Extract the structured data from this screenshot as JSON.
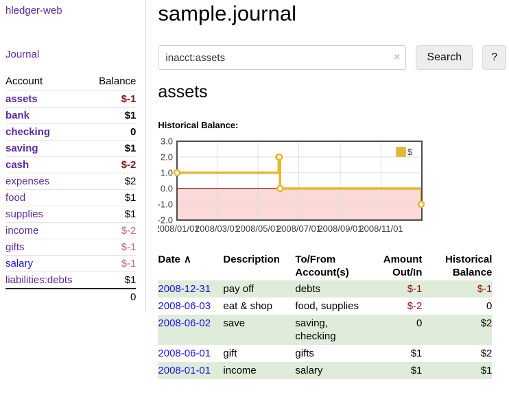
{
  "app": {
    "brand": "hledger-web",
    "nav": {
      "journal": "Journal"
    }
  },
  "sidebar": {
    "columns": {
      "account": "Account",
      "balance": "Balance"
    },
    "accounts": [
      {
        "name": "assets",
        "balance": "$-1",
        "depth": 1,
        "bold": true,
        "balance_style": "neg-strong"
      },
      {
        "name": "bank",
        "balance": "$1",
        "depth": 2,
        "bold": true,
        "balance_style": ""
      },
      {
        "name": "checking",
        "balance": "0",
        "depth": 3,
        "bold": true,
        "balance_style": ""
      },
      {
        "name": "saving",
        "balance": "$1",
        "depth": 3,
        "bold": true,
        "balance_style": ""
      },
      {
        "name": "cash",
        "balance": "$-2",
        "depth": 2,
        "bold": true,
        "balance_style": "neg-strong"
      },
      {
        "name": "expenses",
        "balance": "$2",
        "depth": 1,
        "bold": false,
        "balance_style": ""
      },
      {
        "name": "food",
        "balance": "$1",
        "depth": 2,
        "bold": false,
        "balance_style": ""
      },
      {
        "name": "supplies",
        "balance": "$1",
        "depth": 2,
        "bold": false,
        "balance_style": ""
      },
      {
        "name": "income",
        "balance": "$-2",
        "depth": 1,
        "bold": false,
        "balance_style": "neg-soft"
      },
      {
        "name": "gifts",
        "balance": "$-1",
        "depth": 2,
        "bold": false,
        "balance_style": "neg-soft"
      },
      {
        "name": "salary",
        "balance": "$-1",
        "depth": 2,
        "bold": false,
        "balance_style": "neg-soft",
        "link_style": "unvisited"
      },
      {
        "name": "liabilities:debts",
        "balance": "$1",
        "depth": 1,
        "bold": false,
        "balance_style": ""
      }
    ],
    "total": "0"
  },
  "header": {
    "title": "sample.journal"
  },
  "search": {
    "value": "inacct:assets",
    "clear_icon": "×",
    "search_button": "Search",
    "help_button": "?"
  },
  "account_page": {
    "title": "assets",
    "section_label": "Historical Balance:"
  },
  "chart_data": {
    "type": "line",
    "step": true,
    "title": "Historical Balance:",
    "legend": {
      "label": "$",
      "position": "top-right"
    },
    "ylim": [
      -2,
      3
    ],
    "yticks": [
      {
        "label": "3.0",
        "value": 3
      },
      {
        "label": "2.0",
        "value": 2
      },
      {
        "label": "1.0",
        "value": 1
      },
      {
        "label": "0.0",
        "value": 0
      },
      {
        "label": "-1.0",
        "value": -1
      },
      {
        "label": "-2.0",
        "value": -2
      }
    ],
    "xticks": [
      {
        "label": "2008/01/01",
        "day": 0
      },
      {
        "label": "2008/03/01",
        "day": 60
      },
      {
        "label": "2008/05/01",
        "day": 121
      },
      {
        "label": "2008/07/01",
        "day": 182
      },
      {
        "label": "2008/09/01",
        "day": 244
      },
      {
        "label": "2008/11/01",
        "day": 305
      }
    ],
    "x_span_days": 366,
    "points": [
      {
        "date": "2008-01-01",
        "day": 0,
        "value": 1.0
      },
      {
        "date": "2008-06-01",
        "day": 152,
        "value": 2.0
      },
      {
        "date": "2008-06-02",
        "day": 153,
        "value": 2.0
      },
      {
        "date": "2008-06-03",
        "day": 154,
        "value": 0.0
      },
      {
        "date": "2008-12-31",
        "day": 365,
        "value": -1.0
      }
    ],
    "colors": {
      "line": "#e6b82f",
      "marker_fill": "#ffffff",
      "negative_fill": "#fbd9d9",
      "zero_line": "#7a0d0d",
      "grid": "#dedede",
      "border": "#4d4d4d",
      "tick_text": "#3b3b3b"
    }
  },
  "register": {
    "sort_icon": "∧",
    "columns": [
      {
        "label": "Date"
      },
      {
        "label": "Description"
      },
      {
        "label": "To/From Account(s)"
      },
      {
        "label": "Amount Out/In"
      },
      {
        "label": "Historical Balance"
      }
    ],
    "rows": [
      {
        "date": "2008-12-31",
        "description": "pay off",
        "tofrom": "debts",
        "amount": "$-1",
        "amount_style": "neg",
        "balance": "$-1",
        "balance_style": "neg"
      },
      {
        "date": "2008-06-03",
        "description": "eat & shop",
        "tofrom": "food, supplies",
        "amount": "$-2",
        "amount_style": "neg",
        "balance": "0",
        "balance_style": ""
      },
      {
        "date": "2008-06-02",
        "description": "save",
        "tofrom": "saving, checking",
        "amount": "0",
        "amount_style": "",
        "balance": "$2",
        "balance_style": ""
      },
      {
        "date": "2008-06-01",
        "description": "gift",
        "tofrom": "gifts",
        "amount": "$1",
        "amount_style": "",
        "balance": "$2",
        "balance_style": ""
      },
      {
        "date": "2008-01-01",
        "description": "income",
        "tofrom": "salary",
        "amount": "$1",
        "amount_style": "",
        "balance": "$1",
        "balance_style": ""
      }
    ]
  },
  "colors": {
    "link_purple": "#5b2a9b",
    "link_blue": "#1414e6",
    "negative_strong": "#8b1212",
    "negative_soft": "#c46a6a",
    "row_stripe": "#dfecd9"
  }
}
